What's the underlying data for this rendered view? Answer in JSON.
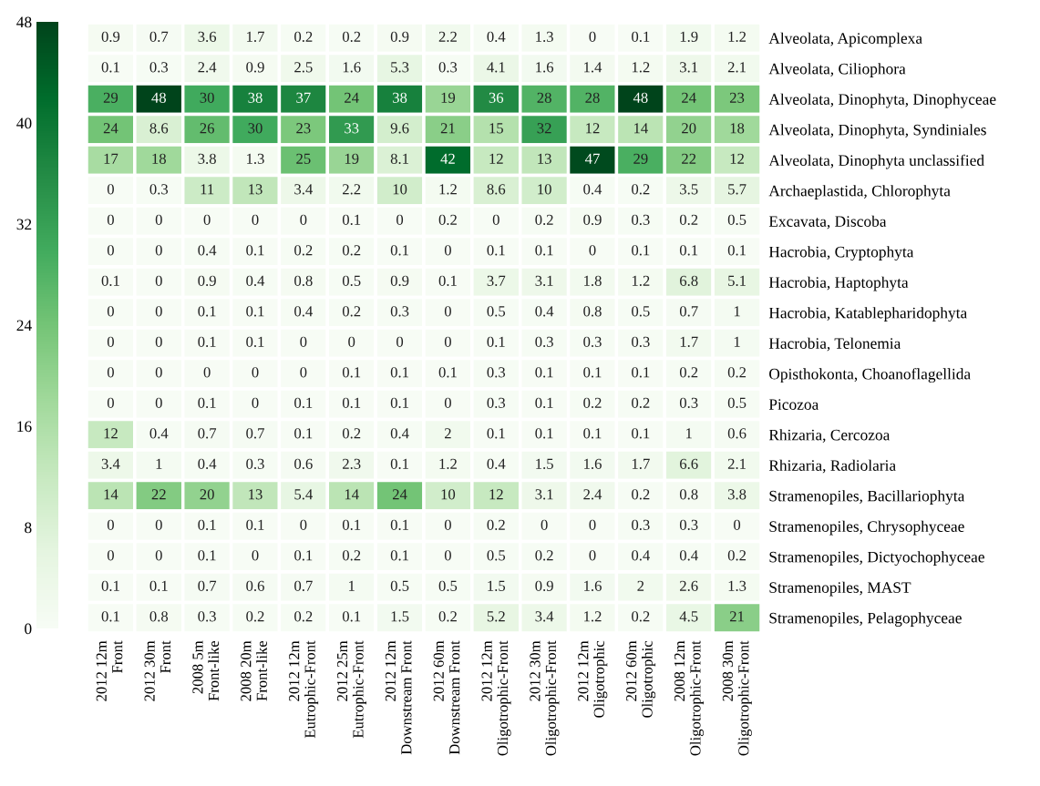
{
  "chart_data": {
    "type": "heatmap",
    "categories": [
      "2012 12m\nFront",
      "2012 30m\nFront",
      "2008 5m\nFront-like",
      "2008 20m\nFront-like",
      "2012 12m\nEutrophic-Front",
      "2012 25m\nEutrophic-Front",
      "2012 12m\nDownstream Front",
      "2012 60m\nDownstream Front",
      "2012 12m\nOligotrophic-Front",
      "2012 30m\nOligotrophic-Front",
      "2012 12m\nOligotrophic",
      "2012 60m\nOligotrophic",
      "2008 12m\nOligotrophic-Front",
      "2008 30m\nOligotrophic-Front"
    ],
    "y_categories": [
      "Alveolata, Apicomplexa",
      "Alveolata, Ciliophora",
      "Alveolata, Dinophyta, Dinophyceae",
      "Alveolata, Dinophyta, Syndiniales",
      "Alveolata, Dinophyta unclassified",
      "Archaeplastida, Chlorophyta",
      "Excavata, Discoba",
      "Hacrobia, Cryptophyta",
      "Hacrobia, Haptophyta",
      "Hacrobia, Katablepharidophyta",
      "Hacrobia, Telonemia",
      "Opisthokonta, Choanoflagellida",
      "Picozoa",
      "Rhizaria, Cercozoa",
      "Rhizaria, Radiolaria",
      "Stramenopiles, Bacillariophyta",
      "Stramenopiles, Chrysophyceae",
      "Stramenopiles, Dictyochophyceae",
      "Stramenopiles, MAST",
      "Stramenopiles, Pelagophyceae"
    ],
    "cells": [
      [
        0.9,
        0.7,
        3.6,
        1.7,
        0.2,
        0.2,
        0.9,
        2.2,
        0.4,
        1.3,
        0,
        0.1,
        1.9,
        1.2
      ],
      [
        0.1,
        0.3,
        2.4,
        0.9,
        2.5,
        1.6,
        5.3,
        0.3,
        4.1,
        1.6,
        1.4,
        1.2,
        3.1,
        2.1
      ],
      [
        29,
        48,
        30,
        38,
        37,
        24,
        38,
        19,
        36,
        28,
        28,
        48,
        24,
        23
      ],
      [
        24,
        8.6,
        26,
        30,
        23,
        33,
        9.6,
        21,
        15,
        32,
        12,
        14,
        20,
        18
      ],
      [
        17,
        18,
        3.8,
        1.3,
        25,
        19,
        8.1,
        42,
        12,
        13,
        47,
        29,
        22,
        12
      ],
      [
        0,
        0.3,
        11,
        13,
        3.4,
        2.2,
        10,
        1.2,
        8.6,
        10,
        0.4,
        0.2,
        3.5,
        5.7
      ],
      [
        0,
        0,
        0,
        0,
        0,
        0.1,
        0,
        0.2,
        0,
        0.2,
        0.9,
        0.3,
        0.2,
        0.5
      ],
      [
        0,
        0,
        0.4,
        0.1,
        0.2,
        0.2,
        0.1,
        0,
        0.1,
        0.1,
        0,
        0.1,
        0.1,
        0.1
      ],
      [
        0.1,
        0,
        0.9,
        0.4,
        0.8,
        0.5,
        0.9,
        0.1,
        3.7,
        3.1,
        1.8,
        1.2,
        6.8,
        5.1
      ],
      [
        0,
        0,
        0.1,
        0.1,
        0.4,
        0.2,
        0.3,
        0,
        0.5,
        0.4,
        0.8,
        0.5,
        0.7,
        1
      ],
      [
        0,
        0,
        0.1,
        0.1,
        0,
        0,
        0,
        0,
        0.1,
        0.3,
        0.3,
        0.3,
        1.7,
        1
      ],
      [
        0,
        0,
        0,
        0,
        0,
        0.1,
        0.1,
        0.1,
        0.3,
        0.1,
        0.1,
        0.1,
        0.2,
        0.2
      ],
      [
        0,
        0,
        0.1,
        0,
        0.1,
        0.1,
        0.1,
        0,
        0.3,
        0.1,
        0.2,
        0.2,
        0.3,
        0.5
      ],
      [
        12,
        0.4,
        0.7,
        0.7,
        0.1,
        0.2,
        0.4,
        2,
        0.1,
        0.1,
        0.1,
        0.1,
        1,
        0.6
      ],
      [
        3.4,
        1,
        0.4,
        0.3,
        0.6,
        2.3,
        0.1,
        1.2,
        0.4,
        1.5,
        1.6,
        1.7,
        6.6,
        2.1
      ],
      [
        14,
        22,
        20,
        13,
        5.4,
        14,
        24,
        10,
        12,
        3.1,
        2.4,
        0.2,
        0.8,
        3.8
      ],
      [
        0,
        0,
        0.1,
        0.1,
        0,
        0.1,
        0.1,
        0,
        0.2,
        0,
        0,
        0.3,
        0.3,
        0
      ],
      [
        0,
        0,
        0.1,
        0,
        0.1,
        0.2,
        0.1,
        0,
        0.5,
        0.2,
        0,
        0.4,
        0.4,
        0.2
      ],
      [
        0.1,
        0.1,
        0.7,
        0.6,
        0.7,
        1,
        0.5,
        0.5,
        1.5,
        0.9,
        1.6,
        2,
        2.6,
        1.3
      ],
      [
        0.1,
        0.8,
        0.3,
        0.2,
        0.2,
        0.1,
        1.5,
        0.2,
        5.2,
        3.4,
        1.2,
        0.2,
        4.5,
        21
      ]
    ],
    "data_labels": true,
    "clim": [
      0,
      48
    ],
    "cticks": [
      0,
      8,
      16,
      24,
      32,
      40,
      48
    ]
  }
}
